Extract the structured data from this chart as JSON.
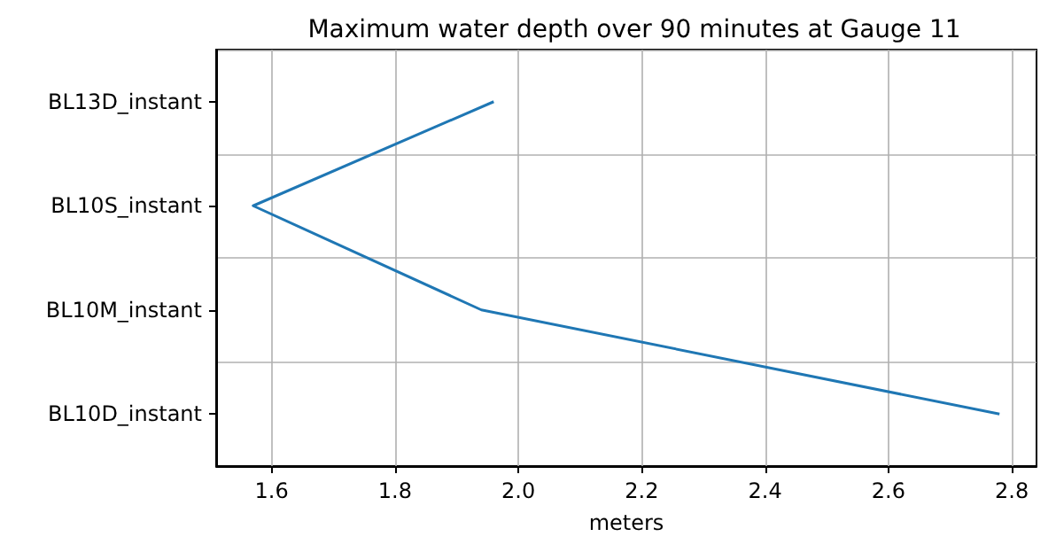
{
  "chart_data": {
    "type": "line",
    "orientation": "horizontal",
    "title": "Maximum water depth over 90 minutes at Gauge 11",
    "xlabel": "meters",
    "categories": [
      "BL13D_instant",
      "BL10S_instant",
      "BL10M_instant",
      "BL10D_instant"
    ],
    "series": [
      {
        "color": "#1f77b4",
        "values": [
          1.96,
          1.57,
          1.94,
          2.78
        ]
      }
    ],
    "xlim": [
      1.51,
      2.84
    ],
    "xticks": [
      1.6,
      1.8,
      {
        "value": 2,
        "label": "2.0"
      },
      2.2,
      2.4,
      2.6,
      2.8
    ],
    "grid": true,
    "marker": "none",
    "line_style": "solid"
  }
}
